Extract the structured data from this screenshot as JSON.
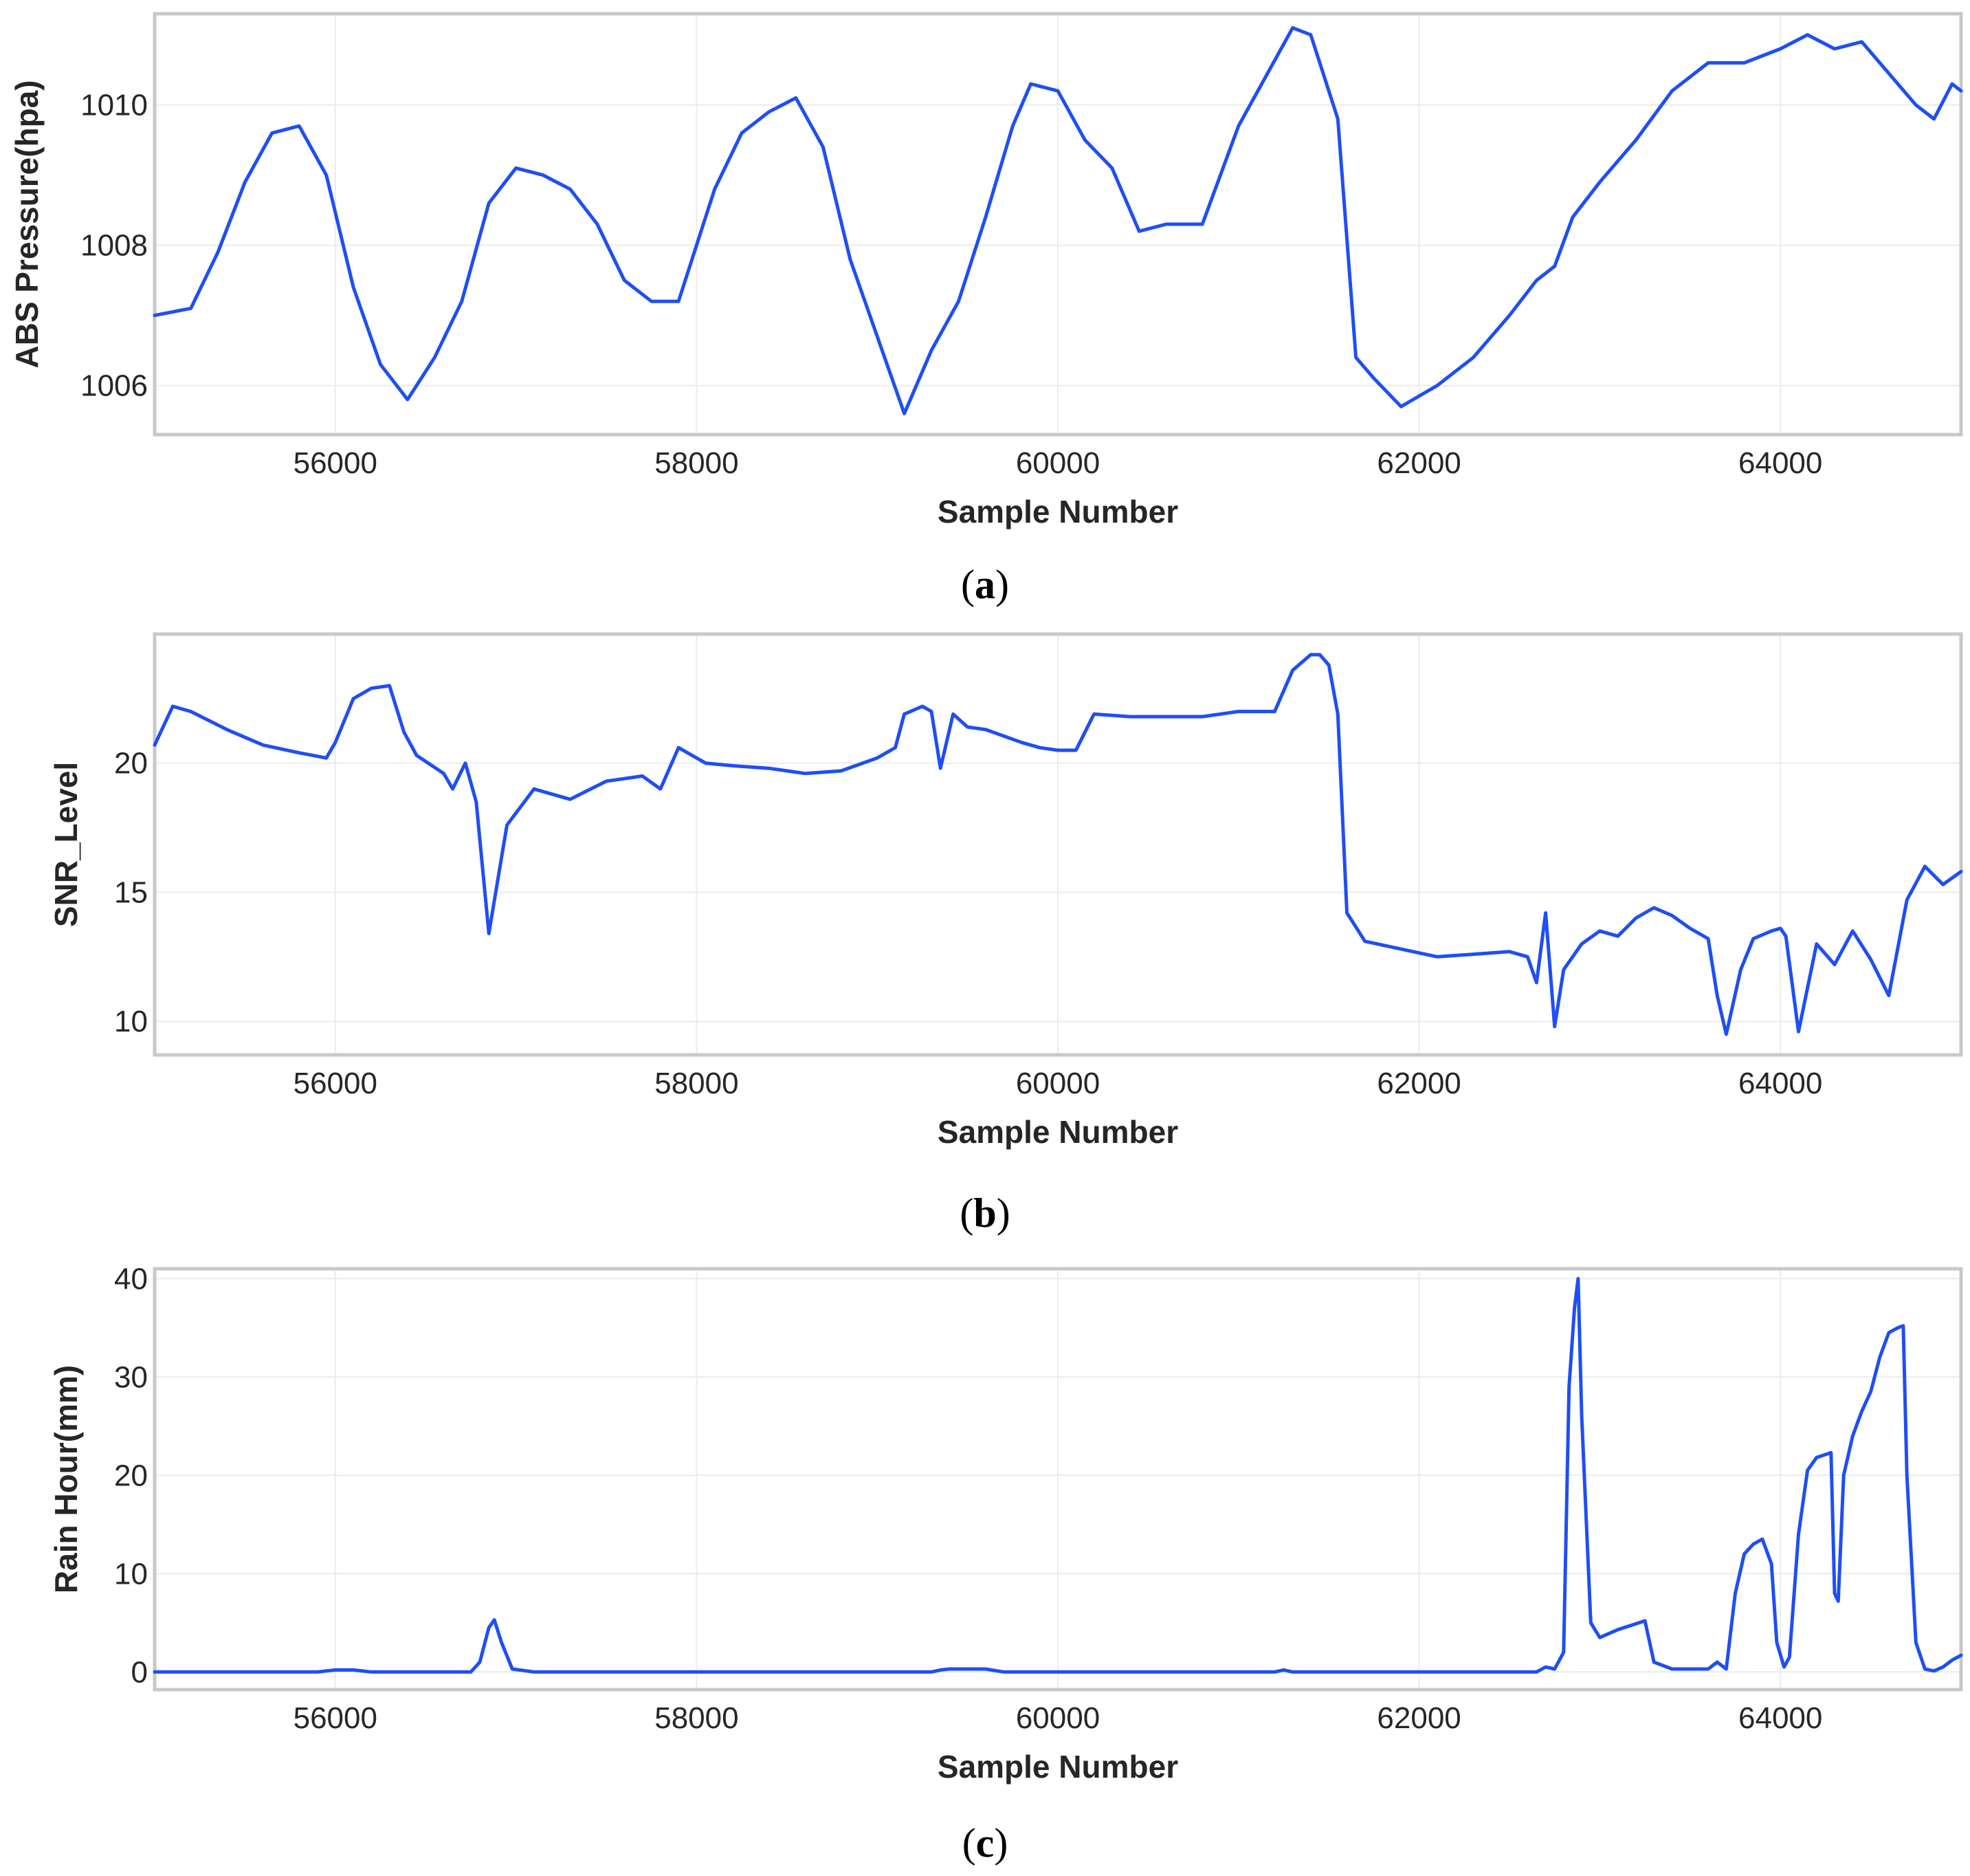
{
  "colors": {
    "series": "#1f4ef5",
    "frame": "#c8c8c8",
    "grid": "#ebebeb",
    "text": "#262626"
  },
  "chart_data": [
    {
      "id": "a",
      "type": "line",
      "caption": "(a)",
      "caption_letter": "a",
      "xlabel": "Sample Number",
      "ylabel": "ABS Pressure(hpa)",
      "xlim": [
        55000,
        65000
      ],
      "ylim": [
        1005.3,
        1011.3
      ],
      "xticks": [
        56000,
        58000,
        60000,
        62000,
        64000
      ],
      "yticks": [
        1006,
        1008,
        1010
      ],
      "grid": true,
      "legend": "none",
      "series": [
        {
          "x": [
            55000,
            55200,
            55350,
            55500,
            55650,
            55800,
            55950,
            56100,
            56250,
            56400,
            56550,
            56700,
            56850,
            57000,
            57150,
            57300,
            57450,
            57600,
            57750,
            57900,
            58100,
            58250,
            58400,
            58550,
            58700,
            58850,
            59000,
            59150,
            59300,
            59450,
            59600,
            59750,
            59850,
            60000,
            60150,
            60300,
            60450,
            60600,
            60800,
            61000,
            61150,
            61300,
            61400,
            61550,
            61650,
            61750,
            61900,
            62100,
            62300,
            62500,
            62650,
            62750,
            62850,
            63000,
            63200,
            63400,
            63600,
            63800,
            64000,
            64150,
            64300,
            64450,
            64650,
            64750,
            64850,
            64950,
            65000
          ],
          "y": [
            1007.0,
            1007.1,
            1007.9,
            1008.9,
            1009.6,
            1009.7,
            1009.0,
            1007.4,
            1006.3,
            1005.8,
            1006.4,
            1007.2,
            1008.6,
            1009.1,
            1009.0,
            1008.8,
            1008.3,
            1007.5,
            1007.2,
            1007.2,
            1008.8,
            1009.6,
            1009.9,
            1010.1,
            1009.4,
            1007.8,
            1006.7,
            1005.6,
            1006.5,
            1007.2,
            1008.4,
            1009.7,
            1010.3,
            1010.2,
            1009.5,
            1009.1,
            1008.2,
            1008.3,
            1008.3,
            1009.7,
            1010.4,
            1011.1,
            1011.0,
            1009.8,
            1006.4,
            1006.1,
            1005.7,
            1006.0,
            1006.4,
            1007.0,
            1007.5,
            1007.7,
            1008.4,
            1008.9,
            1009.5,
            1010.2,
            1010.6,
            1010.6,
            1010.8,
            1011.0,
            1010.8,
            1010.9,
            1010.3,
            1010.0,
            1009.8,
            1010.3,
            1010.2
          ]
        }
      ]
    },
    {
      "id": "b",
      "type": "line",
      "caption": "(b)",
      "caption_letter": "b",
      "xlabel": "Sample Number",
      "ylabel": "SNR_Level",
      "xlim": [
        55000,
        65000
      ],
      "ylim": [
        8.7,
        25.0
      ],
      "xticks": [
        56000,
        58000,
        60000,
        62000,
        64000
      ],
      "yticks": [
        10,
        15,
        20
      ],
      "grid": true,
      "legend": "none",
      "series": [
        {
          "x": [
            55000,
            55100,
            55200,
            55400,
            55600,
            55800,
            55950,
            56000,
            56100,
            56200,
            56300,
            56380,
            56450,
            56600,
            56650,
            56720,
            56780,
            56850,
            56950,
            57100,
            57300,
            57500,
            57700,
            57800,
            57900,
            57950,
            58050,
            58200,
            58400,
            58600,
            58800,
            59000,
            59100,
            59150,
            59250,
            59300,
            59350,
            59420,
            59500,
            59600,
            59800,
            59900,
            60000,
            60100,
            60200,
            60400,
            60600,
            60800,
            61000,
            61100,
            61200,
            61300,
            61400,
            61450,
            61500,
            61550,
            61600,
            61700,
            61900,
            62100,
            62300,
            62500,
            62600,
            62650,
            62700,
            62750,
            62800,
            62900,
            63000,
            63100,
            63200,
            63300,
            63400,
            63500,
            63600,
            63650,
            63700,
            63780,
            63850,
            63950,
            64000,
            64030,
            64100,
            64200,
            64300,
            64400,
            64500,
            64600,
            64700,
            64800,
            64900,
            65000
          ],
          "y": [
            20.7,
            22.2,
            22.0,
            21.3,
            20.7,
            20.4,
            20.2,
            20.8,
            22.5,
            22.9,
            23.0,
            21.2,
            20.3,
            19.6,
            19.0,
            20.0,
            18.5,
            13.4,
            17.6,
            19.0,
            18.6,
            19.3,
            19.5,
            19.0,
            20.6,
            20.4,
            20.0,
            19.9,
            19.8,
            19.6,
            19.7,
            20.2,
            20.6,
            21.9,
            22.2,
            22.0,
            19.8,
            21.9,
            21.4,
            21.3,
            20.8,
            20.6,
            20.5,
            20.5,
            21.9,
            21.8,
            21.8,
            21.8,
            22.0,
            22.0,
            22.0,
            23.6,
            24.2,
            24.2,
            23.8,
            21.9,
            14.2,
            13.1,
            12.8,
            12.5,
            12.6,
            12.7,
            12.5,
            11.5,
            14.2,
            9.8,
            12.0,
            13.0,
            13.5,
            13.3,
            14.0,
            14.4,
            14.1,
            13.6,
            13.2,
            11.0,
            9.5,
            12.0,
            13.2,
            13.5,
            13.6,
            13.3,
            9.6,
            13.0,
            12.2,
            13.5,
            12.4,
            11.0,
            14.7,
            16.0,
            15.3,
            15.8
          ]
        }
      ]
    },
    {
      "id": "c",
      "type": "line",
      "caption": "(c)",
      "caption_letter": "c",
      "xlabel": "Sample Number",
      "ylabel": "Rain Hour(mm)",
      "xlim": [
        55000,
        65000
      ],
      "ylim": [
        -1.8,
        41.0
      ],
      "xticks": [
        56000,
        58000,
        60000,
        62000,
        64000
      ],
      "yticks": [
        0,
        10,
        20,
        30,
        40
      ],
      "grid": true,
      "legend": "none",
      "series": [
        {
          "x": [
            55000,
            55900,
            56000,
            56100,
            56200,
            56750,
            56800,
            56850,
            56880,
            56920,
            56980,
            57100,
            59300,
            59350,
            59400,
            59500,
            59600,
            59700,
            61200,
            61250,
            61300,
            62650,
            62700,
            62750,
            62800,
            62830,
            62860,
            62880,
            62900,
            62950,
            63000,
            63100,
            63200,
            63250,
            63300,
            63400,
            63600,
            63650,
            63700,
            63750,
            63800,
            63850,
            63900,
            63950,
            63980,
            64020,
            64050,
            64100,
            64150,
            64200,
            64280,
            64300,
            64320,
            64350,
            64400,
            64450,
            64500,
            64550,
            64600,
            64650,
            64680,
            64700,
            64750,
            64800,
            64850,
            64900,
            64950,
            65000
          ],
          "y": [
            0,
            0,
            0.2,
            0.2,
            0,
            0,
            1.0,
            4.5,
            5.3,
            3.0,
            0.3,
            0,
            0,
            0.2,
            0.3,
            0.3,
            0.3,
            0,
            0,
            0.2,
            0,
            0,
            0.5,
            0.3,
            2.0,
            29.0,
            37.0,
            40.0,
            26.0,
            5.0,
            3.5,
            4.3,
            4.9,
            5.2,
            1.0,
            0.3,
            0.3,
            1.0,
            0.3,
            8.0,
            12.0,
            13.0,
            13.5,
            11.0,
            3.0,
            0.5,
            1.5,
            14.0,
            20.5,
            21.8,
            22.3,
            8.0,
            7.2,
            20.0,
            24.0,
            26.5,
            28.5,
            32.0,
            34.5,
            35.0,
            35.2,
            20.0,
            3.0,
            0.3,
            0.1,
            0.5,
            1.2,
            1.7
          ]
        }
      ]
    }
  ]
}
